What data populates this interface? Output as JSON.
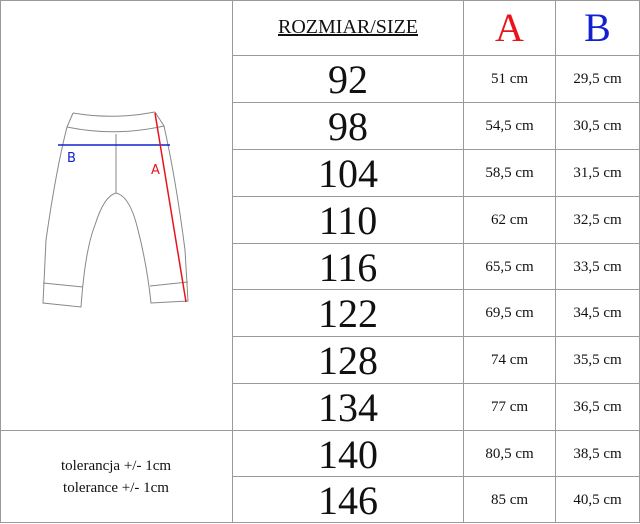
{
  "header": {
    "size_label": "ROZMIAR/SIZE",
    "col_a": "A",
    "col_b": "B"
  },
  "colors": {
    "a": "#e8141c",
    "b": "#1420d0"
  },
  "diagram": {
    "label_a": "A",
    "label_b": "B"
  },
  "rows": [
    {
      "size": "92",
      "a": "51 cm",
      "b": "29,5 cm"
    },
    {
      "size": "98",
      "a": "54,5 cm",
      "b": "30,5 cm"
    },
    {
      "size": "104",
      "a": "58,5 cm",
      "b": "31,5 cm"
    },
    {
      "size": "110",
      "a": "62 cm",
      "b": "32,5 cm"
    },
    {
      "size": "116",
      "a": "65,5 cm",
      "b": "33,5 cm"
    },
    {
      "size": "122",
      "a": "69,5 cm",
      "b": "34,5 cm"
    },
    {
      "size": "128",
      "a": "74 cm",
      "b": "35,5 cm"
    },
    {
      "size": "134",
      "a": "77 cm",
      "b": "36,5 cm"
    },
    {
      "size": "140",
      "a": "80,5 cm",
      "b": "38,5 cm"
    },
    {
      "size": "146",
      "a": "85 cm",
      "b": "40,5 cm"
    }
  ],
  "tolerance": {
    "pl": "tolerancja +/- 1cm",
    "en": "tolerance +/- 1cm"
  }
}
